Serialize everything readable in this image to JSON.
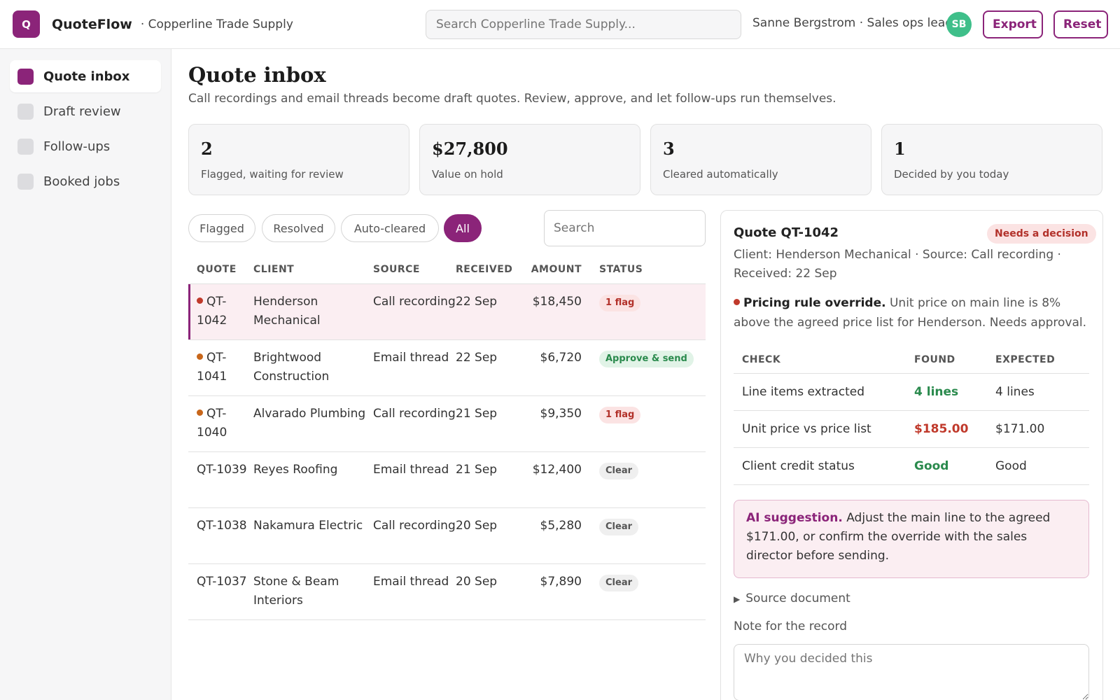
{
  "header": {
    "logo_letter": "Q",
    "app_name": "QuoteFlow",
    "org_name": "· Copperline Trade Supply",
    "search_placeholder": "Search Copperline Trade Supply...",
    "user": "Sanne Bergstrom · Sales ops lead",
    "avatar_initials": "SB",
    "export_label": "Export",
    "reset_label": "Reset"
  },
  "sidebar": {
    "items": [
      {
        "label": "Quote inbox",
        "active": true
      },
      {
        "label": "Draft review",
        "active": false
      },
      {
        "label": "Follow-ups",
        "active": false
      },
      {
        "label": "Booked jobs",
        "active": false
      }
    ]
  },
  "page": {
    "title": "Quote inbox",
    "subtitle": "Call recordings and email threads become draft quotes. Review, approve, and let follow-ups run themselves."
  },
  "stats": [
    {
      "value": "2",
      "label": "Flagged, waiting for review"
    },
    {
      "value": "$27,800",
      "label": "Value on hold"
    },
    {
      "value": "3",
      "label": "Cleared automatically"
    },
    {
      "value": "1",
      "label": "Decided by you today"
    }
  ],
  "filters": {
    "pills": [
      "Flagged",
      "Resolved",
      "Auto-cleared",
      "All"
    ],
    "active": "All",
    "search_placeholder": "Search"
  },
  "table": {
    "columns": [
      "QUOTE",
      "CLIENT",
      "SOURCE",
      "RECEIVED",
      "AMOUNT",
      "STATUS"
    ],
    "rows": [
      {
        "quote": "QT-1042",
        "client": "Henderson Mechanical",
        "source": "Call recording",
        "received": "22 Sep",
        "amount": "$18,450",
        "status": "1 flag",
        "dot": "red",
        "selected": true
      },
      {
        "quote": "QT-1041",
        "client": "Brightwood Construction",
        "source": "Email thread",
        "received": "22 Sep",
        "amount": "$6,720",
        "status": "Approve & send",
        "dot": "orange",
        "selected": false
      },
      {
        "quote": "QT-1040",
        "client": "Alvarado Plumbing",
        "source": "Call recording",
        "received": "21 Sep",
        "amount": "$9,350",
        "status": "1 flag",
        "dot": "orange",
        "selected": false
      },
      {
        "quote": "QT-1039",
        "client": "Reyes Roofing",
        "source": "Email thread",
        "received": "21 Sep",
        "amount": "$12,400",
        "status": "Clear",
        "dot": "",
        "selected": false
      },
      {
        "quote": "QT-1038",
        "client": "Nakamura Electric",
        "source": "Call recording",
        "received": "20 Sep",
        "amount": "$5,280",
        "status": "Clear",
        "dot": "",
        "selected": false
      },
      {
        "quote": "QT-1037",
        "client": "Stone & Beam Interiors",
        "source": "Email thread",
        "received": "20 Sep",
        "amount": "$7,890",
        "status": "Clear",
        "dot": "",
        "selected": false
      }
    ]
  },
  "detail": {
    "title": "Quote QT-1042",
    "badge": "Needs a decision",
    "meta": "Client: Henderson Mechanical · Source: Call recording · Received: 22 Sep",
    "issue_title": "Pricing rule override.",
    "issue_text": "Unit price on main line is 8% above the agreed price list for Henderson. Needs approval.",
    "checks": {
      "columns": [
        "CHECK",
        "FOUND",
        "EXPECTED"
      ],
      "rows": [
        {
          "check": "Line items extracted",
          "found": "4 lines",
          "expected": "4 lines",
          "found_status": "ok"
        },
        {
          "check": "Unit price vs price list",
          "found": "$185.00",
          "expected": "$171.00",
          "found_status": "bad"
        },
        {
          "check": "Client credit status",
          "found": "Good",
          "expected": "Good",
          "found_status": "ok"
        }
      ]
    },
    "suggestion_title": "AI suggestion.",
    "suggestion_text": "Adjust the main line to the agreed $171.00, or confirm the override with the sales director before sending.",
    "source_doc": "Source document",
    "note_label": "Note for the record",
    "note_placeholder": "Why you decided this"
  },
  "colors": {
    "brand": "#8b2479",
    "avatar": "#3fbf8a",
    "flag_red": "#c0392b",
    "flag_orange": "#c8661a",
    "ok_green": "#2a8a4d"
  }
}
